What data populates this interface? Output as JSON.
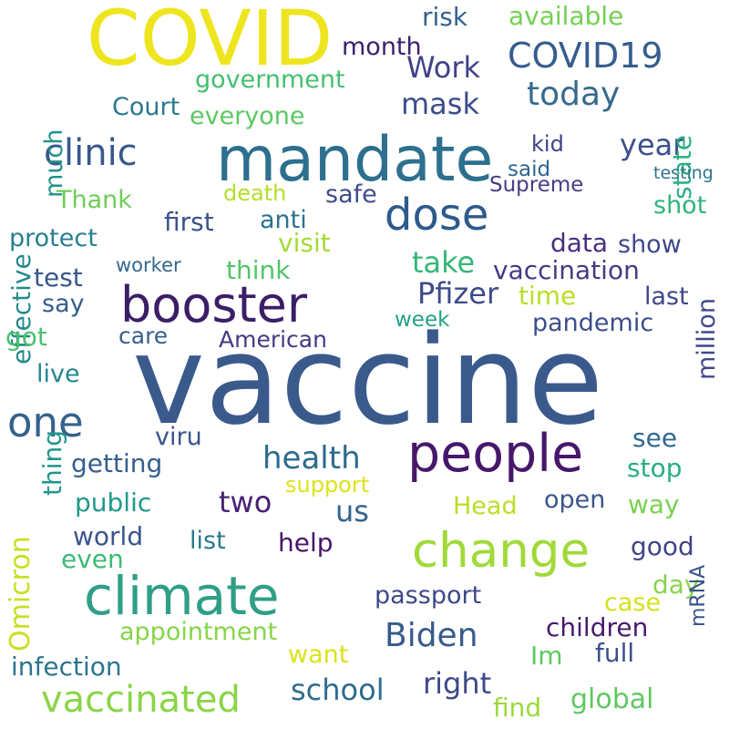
{
  "words": [
    {
      "text": "vaccine",
      "color": "#3b5a8c"
    },
    {
      "text": "COVID",
      "color": "#eee51f"
    },
    {
      "text": "mandate",
      "color": "#2d6f8e"
    },
    {
      "text": "change",
      "color": "#a0da39"
    },
    {
      "text": "climate",
      "color": "#2f9f87"
    },
    {
      "text": "people",
      "color": "#47176b"
    },
    {
      "text": "booster",
      "color": "#3b1e67"
    },
    {
      "text": "dose",
      "color": "#2d5a8c"
    },
    {
      "text": "one",
      "color": "#35628d"
    },
    {
      "text": "vaccinated",
      "color": "#8ad547"
    },
    {
      "text": "clinic",
      "color": "#38588c"
    },
    {
      "text": "COVID19",
      "color": "#365d8d"
    },
    {
      "text": "Biden",
      "color": "#375a8c"
    },
    {
      "text": "today",
      "color": "#376a8c"
    },
    {
      "text": "health",
      "color": "#2b6c8e"
    },
    {
      "text": "Omicron",
      "color": "#c8e020"
    },
    {
      "text": "year",
      "color": "#3c508b"
    },
    {
      "text": "Work",
      "color": "#404388"
    },
    {
      "text": "mask",
      "color": "#3d4d8a"
    },
    {
      "text": "government",
      "color": "#44bf70"
    },
    {
      "text": "Court",
      "color": "#2a788e"
    },
    {
      "text": "available",
      "color": "#75d054"
    },
    {
      "text": "effective",
      "color": "#23898e"
    },
    {
      "text": "much",
      "color": "#21918c"
    },
    {
      "text": "everyone",
      "color": "#5cc863"
    },
    {
      "text": "month",
      "color": "#3b1f6b"
    },
    {
      "text": "risk",
      "color": "#35608d"
    },
    {
      "text": "state",
      "color": "#29af7f"
    },
    {
      "text": "Thank",
      "color": "#6ece58"
    },
    {
      "text": "first",
      "color": "#3a538b"
    },
    {
      "text": "anti",
      "color": "#2c718e"
    },
    {
      "text": "death",
      "color": "#b5de2b"
    },
    {
      "text": "safe",
      "color": "#3e4c8a"
    },
    {
      "text": "Supreme",
      "color": "#433d84"
    },
    {
      "text": "kid",
      "color": "#414287"
    },
    {
      "text": "said",
      "color": "#31668e"
    },
    {
      "text": "shot",
      "color": "#2fb47c"
    },
    {
      "text": "testing",
      "color": "#2c728e"
    },
    {
      "text": "protect",
      "color": "#27808e"
    },
    {
      "text": "visit",
      "color": "#a5db36"
    },
    {
      "text": "data",
      "color": "#472f7d"
    },
    {
      "text": "show",
      "color": "#3e4989"
    },
    {
      "text": "take",
      "color": "#35b779"
    },
    {
      "text": "think",
      "color": "#52c569"
    },
    {
      "text": "vaccination",
      "color": "#443b84"
    },
    {
      "text": "test",
      "color": "#39558c"
    },
    {
      "text": "worker",
      "color": "#31688e"
    },
    {
      "text": "Pfizer",
      "color": "#3e4a89"
    },
    {
      "text": "time",
      "color": "#bade28"
    },
    {
      "text": "last",
      "color": "#3f4788"
    },
    {
      "text": "say",
      "color": "#365c8d"
    },
    {
      "text": "pandemic",
      "color": "#3d4e8a"
    },
    {
      "text": "week",
      "color": "#20a386"
    },
    {
      "text": "got",
      "color": "#4ac16d"
    },
    {
      "text": "care",
      "color": "#355f8d"
    },
    {
      "text": "American",
      "color": "#443983"
    },
    {
      "text": "million",
      "color": "#3f4889"
    },
    {
      "text": "live",
      "color": "#24868e"
    },
    {
      "text": "viru",
      "color": "#3a548c"
    },
    {
      "text": "see",
      "color": "#306a8e"
    },
    {
      "text": "getting",
      "color": "#355e8d"
    },
    {
      "text": "thing",
      "color": "#1f968b"
    },
    {
      "text": "stop",
      "color": "#28ae80"
    },
    {
      "text": "two",
      "color": "#482173"
    },
    {
      "text": "us",
      "color": "#33638d"
    },
    {
      "text": "support",
      "color": "#dde318"
    },
    {
      "text": "public",
      "color": "#1f998a"
    },
    {
      "text": "open",
      "color": "#39568c"
    },
    {
      "text": "way",
      "color": "#7ad151"
    },
    {
      "text": "Head",
      "color": "#bade28"
    },
    {
      "text": "world",
      "color": "#3a548c"
    },
    {
      "text": "list",
      "color": "#2a788e"
    },
    {
      "text": "help",
      "color": "#481467"
    },
    {
      "text": "good",
      "color": "#404588"
    },
    {
      "text": "even",
      "color": "#3bbb75"
    },
    {
      "text": "passport",
      "color": "#3f4889"
    },
    {
      "text": "day",
      "color": "#89d548"
    },
    {
      "text": "case",
      "color": "#d2e21b"
    },
    {
      "text": "appointment",
      "color": "#86d549"
    },
    {
      "text": "children",
      "color": "#481b6d"
    },
    {
      "text": "want",
      "color": "#dae319"
    },
    {
      "text": "full",
      "color": "#3b518b"
    },
    {
      "text": "infection",
      "color": "#2a768e"
    },
    {
      "text": "right",
      "color": "#3e4989"
    },
    {
      "text": "Im",
      "color": "#5ec962"
    },
    {
      "text": "school",
      "color": "#2f6c8e"
    },
    {
      "text": "find",
      "color": "#9bd93c"
    },
    {
      "text": "global",
      "color": "#5ec962"
    },
    {
      "text": "mRNA",
      "color": "#3a538b"
    }
  ]
}
